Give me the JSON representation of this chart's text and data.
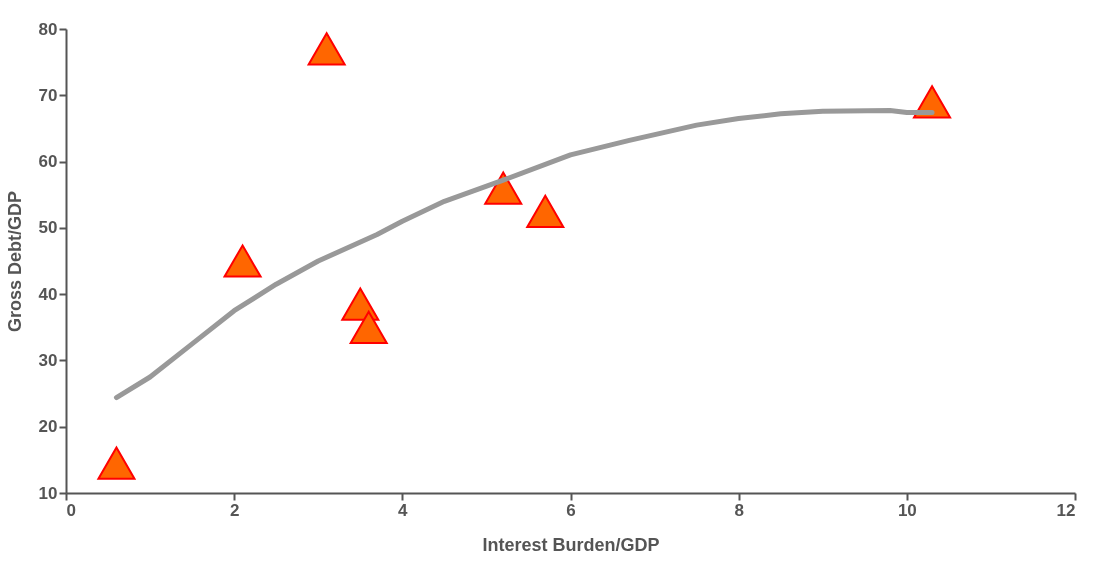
{
  "chart_data": {
    "type": "scatter",
    "xlabel": "Interest Burden/GDP",
    "ylabel": "Gross Debt/GDP",
    "xlim": [
      0,
      12
    ],
    "xticks": [
      0,
      2,
      4,
      6,
      8,
      10,
      12
    ],
    "ylim": [
      10,
      80
    ],
    "yticks": [
      10,
      20,
      30,
      40,
      50,
      60,
      70,
      80
    ],
    "grid": false,
    "series": [
      {
        "type": "line",
        "color": "#999999",
        "marker": "none",
        "line_style": "solid",
        "x": [
          0.6,
          1,
          1.5,
          2,
          2.5,
          3,
          3.7,
          4,
          4.5,
          5.2,
          6,
          6.7,
          7.5,
          8,
          8.5,
          9,
          9.8,
          10,
          10.3
        ],
        "values": [
          24.4,
          27.5,
          32.5,
          37.5,
          41.5,
          45,
          49,
          51,
          54,
          57.2,
          61,
          63.2,
          65.5,
          66.5,
          67.2,
          67.6,
          67.7,
          67.4,
          67.4
        ]
      },
      {
        "color": "#ff6600",
        "marker": "triangle",
        "x": [
          0.6,
          2.1,
          3.1,
          3.5,
          3.6,
          5.2,
          5.7,
          10.3
        ],
        "values": [
          14.5,
          45,
          77,
          38.5,
          35,
          56,
          52.5,
          69
        ]
      }
    ]
  }
}
